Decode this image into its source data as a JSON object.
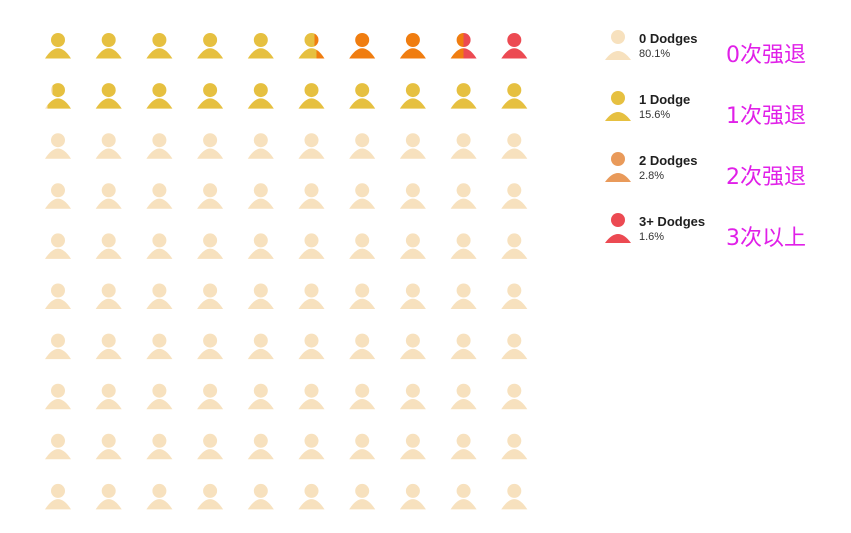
{
  "chart_data": {
    "type": "waffle",
    "grid": {
      "rows": 10,
      "cols": 10
    },
    "categories": [
      {
        "label": "0 Dodges",
        "percent": "80.1%",
        "value": 80.1,
        "color": "#f7e1be",
        "annotation": "0次强退"
      },
      {
        "label": "1 Dodge",
        "percent": "15.6%",
        "value": 15.6,
        "color": "#e6c040",
        "annotation": "1次强退"
      },
      {
        "label": "2 Dodges",
        "percent": "2.8%",
        "value": 2.8,
        "color": "#f07d10",
        "annotation": "2次强退"
      },
      {
        "label": "3+ Dodges",
        "percent": "1.6%",
        "value": 1.6,
        "color": "#ec4a52",
        "annotation": "3次以上"
      }
    ],
    "legend_icon_colors": [
      "#f7e1be",
      "#e6c040",
      "#e99a5a",
      "#ec4a52"
    ],
    "units_per_icon": 1
  }
}
